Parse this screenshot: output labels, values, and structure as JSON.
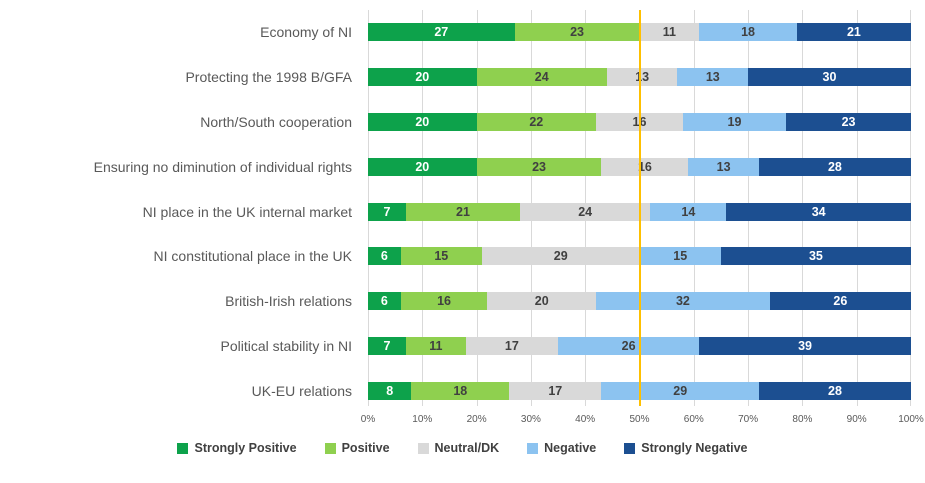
{
  "chart_data": {
    "type": "bar",
    "orientation": "horizontal",
    "stacked": true,
    "title": "",
    "xlabel": "",
    "ylabel": "",
    "xlim": [
      0,
      100
    ],
    "gridlines": true,
    "legend_position": "bottom",
    "categories": [
      "Economy of NI",
      "Protecting the 1998 B/GFA",
      "North/South cooperation",
      "Ensuring no diminution of individual rights",
      "NI place in the UK internal market",
      "NI constitutional place in the UK",
      "British-Irish relations",
      "Political stability in NI",
      "UK-EU relations"
    ],
    "series": [
      {
        "name": "Strongly Positive",
        "color": "#0da24b",
        "values": [
          27,
          20,
          20,
          20,
          7,
          6,
          6,
          7,
          8
        ]
      },
      {
        "name": "Positive",
        "color": "#8fd04f",
        "values": [
          23,
          24,
          22,
          23,
          21,
          15,
          16,
          11,
          18
        ]
      },
      {
        "name": "Neutral/DK",
        "color": "#d9d9d9",
        "values": [
          11,
          13,
          16,
          16,
          24,
          29,
          20,
          17,
          17
        ]
      },
      {
        "name": "Negative",
        "color": "#8cc3f0",
        "values": [
          18,
          13,
          19,
          13,
          14,
          15,
          32,
          26,
          29
        ]
      },
      {
        "name": "Strongly Negative",
        "color": "#1c4f91",
        "values": [
          21,
          30,
          23,
          28,
          34,
          35,
          26,
          39,
          28
        ]
      }
    ],
    "x_ticks": [
      "0%",
      "10%",
      "20%",
      "30%",
      "40%",
      "50%",
      "60%",
      "70%",
      "80%",
      "90%",
      "100%"
    ],
    "reference_line": {
      "value": 50,
      "color": "#ffc000"
    },
    "colors": {
      "gridline": "#d9d9d9",
      "category_text": "#595959",
      "tick_text": "#595959",
      "legend_text": "#404040",
      "value_text_dark": "#404040",
      "value_text_light": "#ffffff"
    }
  }
}
